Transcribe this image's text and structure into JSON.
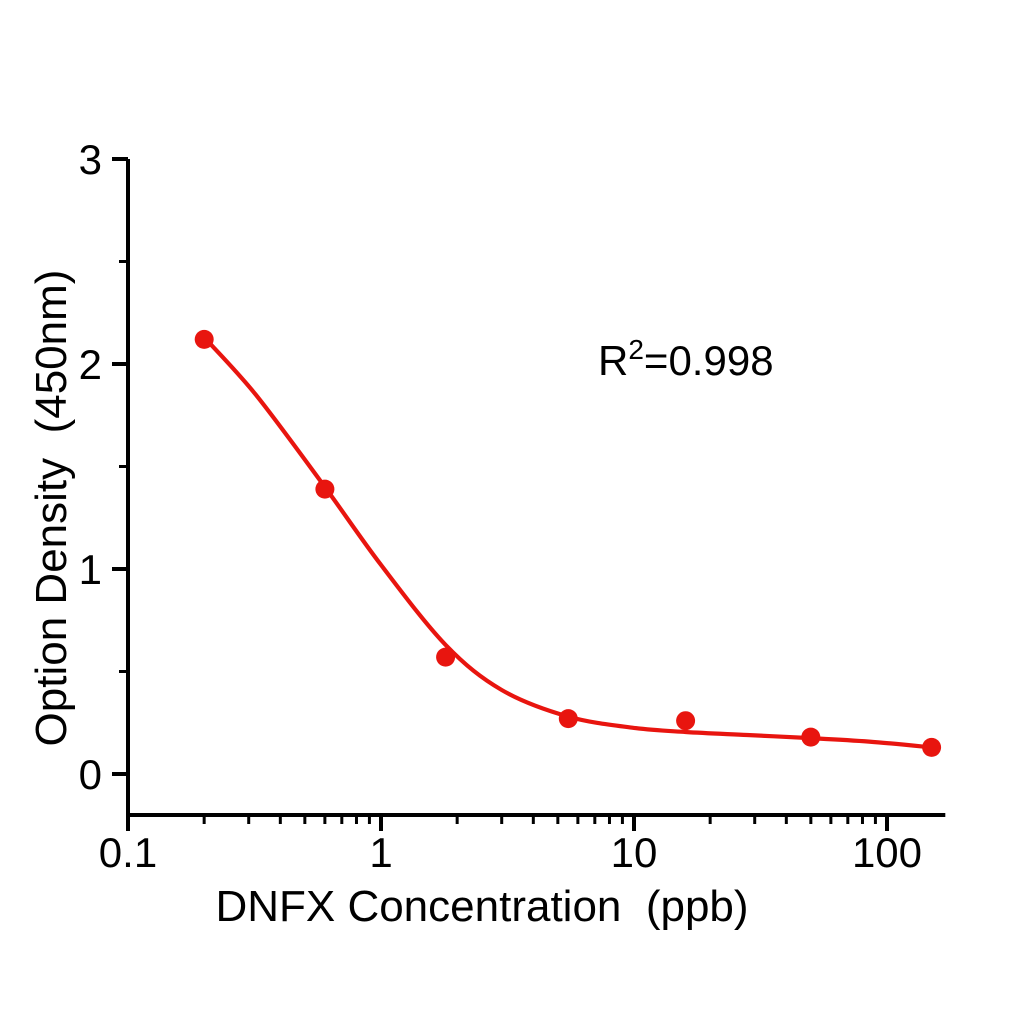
{
  "chart_data": {
    "type": "scatter",
    "title": "",
    "xlabel": "DNFX Concentration  (ppb)",
    "ylabel": "Option Density  (450nm)",
    "x_scale": "log",
    "y_scale": "linear",
    "xlim": [
      0.1,
      170
    ],
    "ylim": [
      -0.2,
      3
    ],
    "grid": false,
    "legend": null,
    "colors": {
      "series": "#e8150f",
      "axis": "#000000",
      "background": "#ffffff"
    },
    "x_major_ticks": [
      {
        "value": 0.1,
        "label": "0.1"
      },
      {
        "value": 1,
        "label": "1"
      },
      {
        "value": 10,
        "label": "10"
      },
      {
        "value": 100,
        "label": "100"
      }
    ],
    "x_minor_ticks": [
      0.2,
      0.3,
      0.4,
      0.5,
      0.6,
      0.7,
      0.8,
      0.9,
      2,
      3,
      4,
      5,
      6,
      7,
      8,
      9,
      20,
      30,
      40,
      50,
      60,
      70,
      80,
      90
    ],
    "y_major_ticks": [
      {
        "value": 0,
        "label": "0"
      },
      {
        "value": 1,
        "label": "1"
      },
      {
        "value": 2,
        "label": "2"
      },
      {
        "value": 3,
        "label": "3"
      }
    ],
    "y_minor_ticks": [
      0.5,
      1.5,
      2.5
    ],
    "series": [
      {
        "name": "fit-curve",
        "type": "line",
        "color": "#e8150f",
        "points": [
          [
            0.2,
            2.13
          ],
          [
            0.32,
            1.85
          ],
          [
            0.6,
            1.4
          ],
          [
            1.0,
            1.02
          ],
          [
            1.8,
            0.63
          ],
          [
            3.0,
            0.41
          ],
          [
            5.5,
            0.28
          ],
          [
            10,
            0.225
          ],
          [
            16,
            0.205
          ],
          [
            28,
            0.19
          ],
          [
            50,
            0.175
          ],
          [
            85,
            0.158
          ],
          [
            150,
            0.13
          ]
        ]
      },
      {
        "name": "standard-points",
        "type": "scatter",
        "marker": "circle",
        "color": "#e8150f",
        "points": [
          [
            0.2,
            2.12
          ],
          [
            0.6,
            1.39
          ],
          [
            1.8,
            0.57
          ],
          [
            5.5,
            0.27
          ],
          [
            16,
            0.26
          ],
          [
            50,
            0.18
          ],
          [
            150,
            0.13
          ]
        ]
      }
    ],
    "annotation": {
      "base": "R",
      "exponent": "2",
      "rest": "=0.998",
      "r_squared": 0.998
    }
  }
}
